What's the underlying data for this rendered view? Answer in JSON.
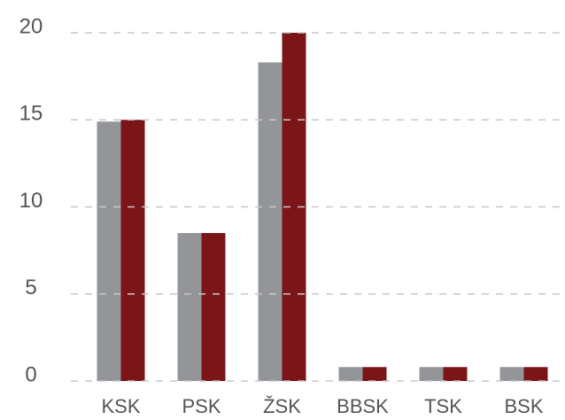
{
  "chart_data": {
    "type": "bar",
    "categories": [
      "KSK",
      "PSK",
      "ŽSK",
      "BBSK",
      "TSK",
      "BSK"
    ],
    "series": [
      {
        "color": "#939598",
        "values": [
          14.9,
          8.5,
          18.3,
          0.8,
          0.8,
          0.8
        ]
      },
      {
        "color": "#7b1518",
        "values": [
          15.0,
          8.5,
          20.0,
          0.8,
          0.8,
          0.8
        ]
      }
    ],
    "ylim": [
      0,
      20
    ],
    "yticks": [
      0,
      5,
      10,
      15,
      20
    ],
    "grid": true
  }
}
